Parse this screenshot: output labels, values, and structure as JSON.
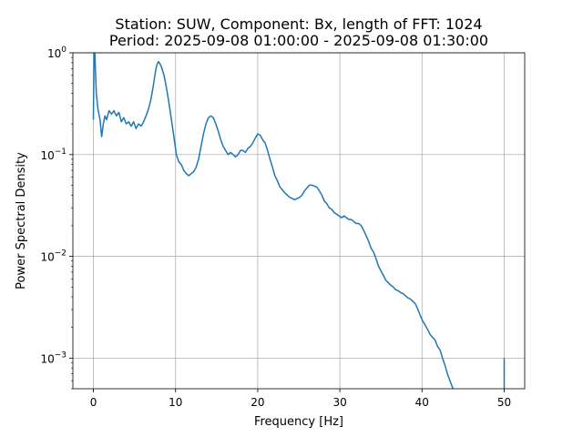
{
  "chart_data": {
    "type": "line",
    "title": [
      "Station: SUW, Component: Bx, length of FFT: 1024",
      "Period: 2025-09-08 01:00:00 - 2025-09-08 01:30:00"
    ],
    "xlabel": "Frequency [Hz]",
    "ylabel": "Power Spectral Density",
    "xlim": [
      -2.5,
      52.5
    ],
    "ylim": [
      0.0005,
      1.0
    ],
    "yscale": "log",
    "xticks": [
      0,
      10,
      20,
      30,
      40,
      50
    ],
    "yticks": [
      {
        "value": 0.001,
        "base": "10",
        "exp": "−3"
      },
      {
        "value": 0.01,
        "base": "10",
        "exp": "−2"
      },
      {
        "value": 0.1,
        "base": "10",
        "exp": "−1"
      },
      {
        "value": 1,
        "base": "10",
        "exp": "0"
      }
    ],
    "grid": true,
    "line_color": "#1f77b4",
    "series": [
      {
        "x": [
          0.0,
          0.05,
          0.1,
          0.2,
          0.35,
          0.55,
          0.8,
          1.0,
          1.2,
          1.4,
          1.6,
          1.9,
          2.2,
          2.5,
          2.8,
          3.1,
          3.4,
          3.7,
          4.0,
          4.3,
          4.6,
          4.9,
          5.2,
          5.5,
          5.8,
          6.1,
          6.4,
          6.7,
          7.0,
          7.3,
          7.5,
          7.7,
          7.9,
          8.1,
          8.3,
          8.6,
          8.9,
          9.2,
          9.5,
          9.8,
          10.1,
          10.4,
          10.7,
          11.0,
          11.3,
          11.6,
          11.9,
          12.2,
          12.5,
          12.8,
          13.1,
          13.4,
          13.7,
          14.0,
          14.3,
          14.6,
          14.9,
          15.2,
          15.5,
          15.8,
          16.1,
          16.4,
          16.7,
          17.0,
          17.3,
          17.6,
          17.9,
          18.2,
          18.5,
          18.8,
          19.1,
          19.4,
          19.7,
          20.0,
          20.3,
          20.6,
          20.9,
          21.2,
          21.5,
          21.8,
          22.1,
          22.4,
          22.7,
          23.0,
          23.3,
          23.6,
          23.9,
          24.2,
          24.5,
          24.8,
          25.1,
          25.4,
          25.7,
          26.0,
          26.3,
          26.6,
          26.9,
          27.2,
          27.5,
          27.8,
          28.1,
          28.4,
          28.7,
          29.0,
          29.3,
          29.6,
          29.9,
          30.2,
          30.5,
          30.8,
          31.1,
          31.4,
          31.7,
          32.0,
          32.3,
          32.6,
          32.9,
          33.2,
          33.5,
          33.8,
          34.1,
          34.4,
          34.7,
          35.0,
          35.3,
          35.6,
          35.9,
          36.2,
          36.5,
          36.8,
          37.1,
          37.4,
          37.7,
          38.0,
          38.3,
          38.6,
          38.9,
          39.2,
          39.5,
          39.8,
          40.1,
          40.4,
          40.7,
          41.0,
          41.3,
          41.6,
          41.9,
          42.2,
          42.5,
          42.8,
          43.1,
          43.4,
          43.7,
          44.0
        ],
        "y": [
          0.22,
          0.6,
          1.3,
          0.9,
          0.4,
          0.28,
          0.22,
          0.15,
          0.2,
          0.24,
          0.22,
          0.27,
          0.25,
          0.27,
          0.24,
          0.26,
          0.21,
          0.23,
          0.2,
          0.21,
          0.19,
          0.21,
          0.18,
          0.2,
          0.19,
          0.21,
          0.24,
          0.28,
          0.35,
          0.48,
          0.62,
          0.75,
          0.82,
          0.78,
          0.72,
          0.6,
          0.45,
          0.32,
          0.22,
          0.15,
          0.1,
          0.085,
          0.08,
          0.07,
          0.065,
          0.062,
          0.065,
          0.068,
          0.075,
          0.09,
          0.12,
          0.16,
          0.2,
          0.23,
          0.24,
          0.23,
          0.2,
          0.17,
          0.14,
          0.12,
          0.11,
          0.1,
          0.105,
          0.1,
          0.095,
          0.1,
          0.11,
          0.11,
          0.105,
          0.115,
          0.12,
          0.13,
          0.145,
          0.16,
          0.155,
          0.14,
          0.13,
          0.11,
          0.09,
          0.075,
          0.062,
          0.055,
          0.048,
          0.045,
          0.042,
          0.04,
          0.038,
          0.037,
          0.036,
          0.037,
          0.038,
          0.04,
          0.044,
          0.047,
          0.05,
          0.05,
          0.049,
          0.048,
          0.044,
          0.04,
          0.035,
          0.033,
          0.03,
          0.029,
          0.027,
          0.026,
          0.025,
          0.024,
          0.025,
          0.024,
          0.023,
          0.023,
          0.022,
          0.021,
          0.021,
          0.02,
          0.018,
          0.016,
          0.014,
          0.012,
          0.011,
          0.0095,
          0.008,
          0.0072,
          0.0065,
          0.0058,
          0.0055,
          0.0052,
          0.005,
          0.0047,
          0.0046,
          0.0044,
          0.0043,
          0.0041,
          0.0039,
          0.0038,
          0.0036,
          0.0034,
          0.003,
          0.0026,
          0.0023,
          0.0021,
          0.0019,
          0.0017,
          0.0016,
          0.0015,
          0.0013,
          0.0012,
          0.001,
          0.00085,
          0.0007,
          0.0006,
          0.00052,
          0.00045
        ]
      },
      {
        "x": [
          50.0,
          50.0
        ],
        "y": [
          0.00045,
          0.001
        ]
      }
    ]
  }
}
